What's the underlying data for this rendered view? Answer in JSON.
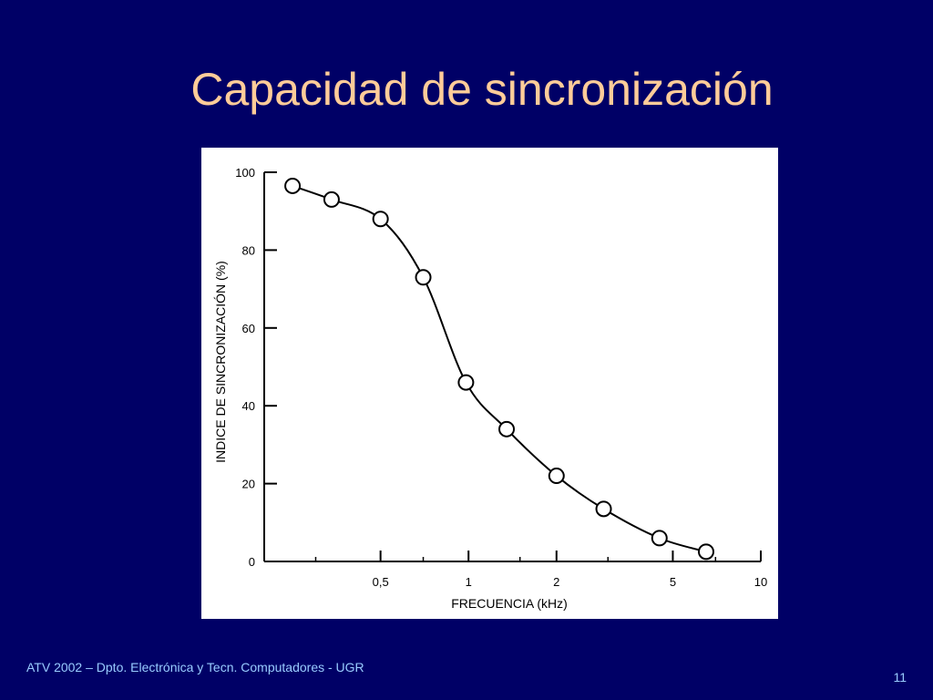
{
  "slide": {
    "title": "Capacidad de sincronización",
    "footer": "ATV 2002 – Dpto. Electrónica y Tecn. Computadores - UGR",
    "number": "11"
  },
  "chart_data": {
    "type": "line",
    "xlabel": "FRECUENCIA (kHz)",
    "ylabel": "INDICE DE SINCRONIZACIÓN (%)",
    "x_scale": "log",
    "xlim": [
      0.2,
      10
    ],
    "ylim": [
      0,
      100
    ],
    "x_ticks": [
      {
        "value": 0.5,
        "label": "0,5"
      },
      {
        "value": 1,
        "label": "1"
      },
      {
        "value": 2,
        "label": "2"
      },
      {
        "value": 5,
        "label": "5"
      },
      {
        "value": 10,
        "label": "10"
      }
    ],
    "y_ticks": [
      {
        "value": 0,
        "label": "0"
      },
      {
        "value": 20,
        "label": "20"
      },
      {
        "value": 40,
        "label": "40"
      },
      {
        "value": 60,
        "label": "60"
      },
      {
        "value": 80,
        "label": "80"
      },
      {
        "value": 100,
        "label": "100"
      }
    ],
    "grid": false,
    "marker": "open-circle",
    "series": [
      {
        "x": [
          0.25,
          0.34,
          0.5,
          0.7,
          0.98,
          1.35,
          2.0,
          2.9,
          4.5,
          6.5
        ],
        "values": [
          96.5,
          93,
          88,
          73,
          46,
          34,
          22,
          13.5,
          6,
          2.5
        ]
      }
    ]
  }
}
